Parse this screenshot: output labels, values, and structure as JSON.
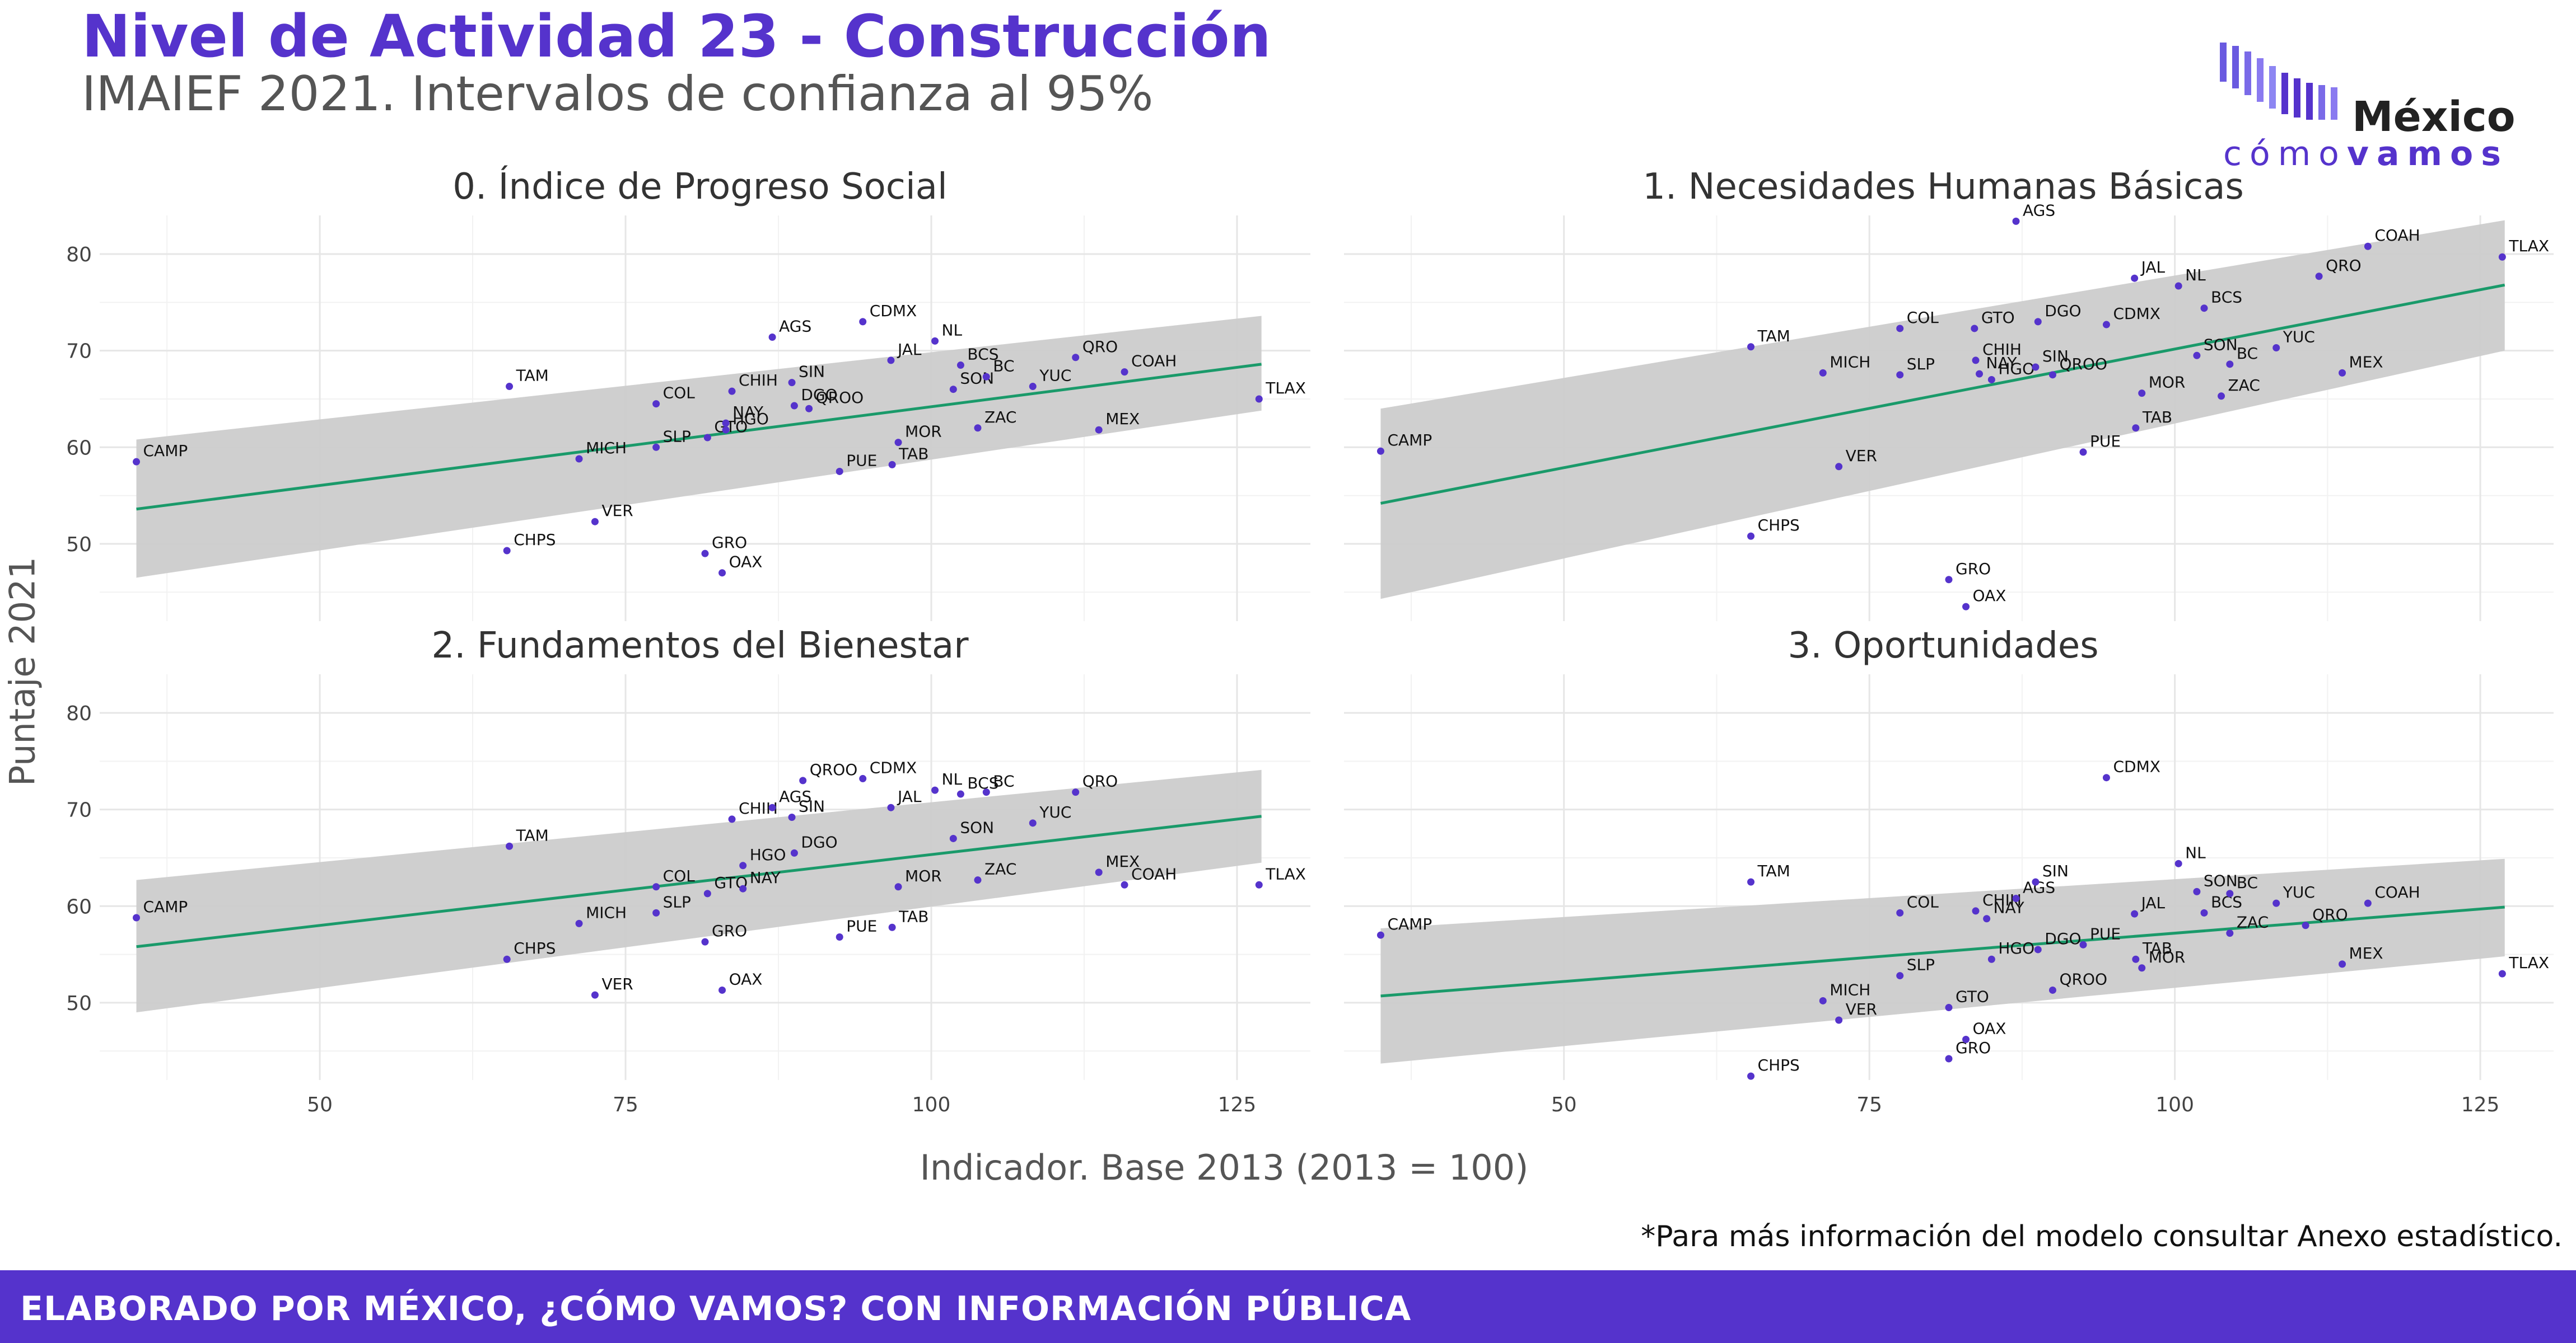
{
  "header": {
    "title": "Nivel de Actividad 23 - Construcción",
    "subtitle": "IMAIEF 2021. Intervalos de confianza al 95%"
  },
  "logo": {
    "word1": "México",
    "word2a": "cómo",
    "word2b": "vamos",
    "bars_icon": "bars-icon"
  },
  "axes": {
    "ylabel": "Puntaje 2021",
    "xlabel": "Indicador. Base 2013 (2013 = 100)"
  },
  "footnote": "*Para más información del modelo consultar Anexo estadístico.",
  "footer": "ELABORADO POR MÉXICO, ¿CÓMO VAMOS? CON INFORMACIÓN PÚBLICA",
  "colors": {
    "accent": "#5533cc",
    "point": "#5533cc",
    "line": "#1a9a6a",
    "band": "#cccccc"
  },
  "chart_data": [
    {
      "type": "scatter",
      "title": "0. Índice de Progreso Social",
      "xlim": [
        32,
        131
      ],
      "ylim": [
        42,
        84
      ],
      "xticks": [
        50,
        75,
        100,
        125
      ],
      "yticks": [
        50,
        60,
        70,
        80
      ],
      "fit": {
        "x": [
          35,
          127
        ],
        "y": [
          53.6,
          68.6
        ],
        "lower": [
          46.5,
          63.8
        ],
        "upper": [
          60.8,
          73.6
        ]
      },
      "points": [
        {
          "label": "CAMP",
          "x": 35,
          "y": 58.5
        },
        {
          "label": "TAM",
          "x": 65.5,
          "y": 66.3
        },
        {
          "label": "CHPS",
          "x": 65.3,
          "y": 49.3
        },
        {
          "label": "VER",
          "x": 72.5,
          "y": 52.3
        },
        {
          "label": "MICH",
          "x": 71.2,
          "y": 58.8
        },
        {
          "label": "SLP",
          "x": 77.5,
          "y": 60
        },
        {
          "label": "COL",
          "x": 77.5,
          "y": 64.5
        },
        {
          "label": "GTO",
          "x": 81.7,
          "y": 61
        },
        {
          "label": "GRO",
          "x": 81.5,
          "y": 49
        },
        {
          "label": "OAX",
          "x": 82.9,
          "y": 47
        },
        {
          "label": "CHIH",
          "x": 83.7,
          "y": 65.8
        },
        {
          "label": "NAY",
          "x": 83.2,
          "y": 62.5
        },
        {
          "label": "HGO",
          "x": 83.2,
          "y": 61.8
        },
        {
          "label": "DGO",
          "x": 88.8,
          "y": 64.3
        },
        {
          "label": "SIN",
          "x": 88.6,
          "y": 66.7
        },
        {
          "label": "AGS",
          "x": 87,
          "y": 71.4
        },
        {
          "label": "QROO",
          "x": 90,
          "y": 64
        },
        {
          "label": "CDMX",
          "x": 94.4,
          "y": 73
        },
        {
          "label": "PUE",
          "x": 92.5,
          "y": 57.5
        },
        {
          "label": "TAB",
          "x": 96.8,
          "y": 58.2
        },
        {
          "label": "JAL",
          "x": 96.7,
          "y": 69
        },
        {
          "label": "MOR",
          "x": 97.3,
          "y": 60.5
        },
        {
          "label": "NL",
          "x": 100.3,
          "y": 71
        },
        {
          "label": "BCS",
          "x": 102.4,
          "y": 68.5
        },
        {
          "label": "SON",
          "x": 101.8,
          "y": 66
        },
        {
          "label": "ZAC",
          "x": 103.8,
          "y": 62
        },
        {
          "label": "BC",
          "x": 104.5,
          "y": 67.3
        },
        {
          "label": "YUC",
          "x": 108.3,
          "y": 66.3
        },
        {
          "label": "QRO",
          "x": 111.8,
          "y": 69.3
        },
        {
          "label": "MEX",
          "x": 113.7,
          "y": 61.8
        },
        {
          "label": "COAH",
          "x": 115.8,
          "y": 67.8
        },
        {
          "label": "TLAX",
          "x": 126.8,
          "y": 65
        }
      ]
    },
    {
      "type": "scatter",
      "title": "1. Necesidades Humanas Básicas",
      "xlim": [
        32,
        131
      ],
      "ylim": [
        42,
        84
      ],
      "xticks": [
        50,
        75,
        100,
        125
      ],
      "yticks": [
        50,
        60,
        70,
        80
      ],
      "fit": {
        "x": [
          35,
          127
        ],
        "y": [
          54.2,
          76.8
        ],
        "lower": [
          44.3,
          70
        ],
        "upper": [
          64,
          83.5
        ]
      },
      "points": [
        {
          "label": "CAMP",
          "x": 35,
          "y": 59.6
        },
        {
          "label": "TAM",
          "x": 65.3,
          "y": 70.4
        },
        {
          "label": "CHPS",
          "x": 65.3,
          "y": 50.8
        },
        {
          "label": "VER",
          "x": 72.5,
          "y": 58
        },
        {
          "label": "MICH",
          "x": 71.2,
          "y": 67.7
        },
        {
          "label": "SLP",
          "x": 77.5,
          "y": 67.5
        },
        {
          "label": "COL",
          "x": 77.5,
          "y": 72.3
        },
        {
          "label": "CHIH",
          "x": 83.7,
          "y": 69
        },
        {
          "label": "GTO",
          "x": 83.6,
          "y": 72.3
        },
        {
          "label": "NAY",
          "x": 84,
          "y": 67.6
        },
        {
          "label": "HGO",
          "x": 85,
          "y": 67
        },
        {
          "label": "GRO",
          "x": 81.5,
          "y": 46.3
        },
        {
          "label": "OAX",
          "x": 82.9,
          "y": 43.5
        },
        {
          "label": "AGS",
          "x": 87,
          "y": 83.4
        },
        {
          "label": "DGO",
          "x": 88.8,
          "y": 73
        },
        {
          "label": "SIN",
          "x": 88.6,
          "y": 68.3
        },
        {
          "label": "QROO",
          "x": 90,
          "y": 67.5
        },
        {
          "label": "CDMX",
          "x": 94.4,
          "y": 72.7
        },
        {
          "label": "PUE",
          "x": 92.5,
          "y": 59.5
        },
        {
          "label": "JAL",
          "x": 96.7,
          "y": 77.5
        },
        {
          "label": "NL",
          "x": 100.3,
          "y": 76.7
        },
        {
          "label": "TAB",
          "x": 96.8,
          "y": 62
        },
        {
          "label": "MOR",
          "x": 97.3,
          "y": 65.6
        },
        {
          "label": "BCS",
          "x": 102.4,
          "y": 74.4
        },
        {
          "label": "SON",
          "x": 101.8,
          "y": 69.5
        },
        {
          "label": "ZAC",
          "x": 103.8,
          "y": 65.3
        },
        {
          "label": "BC",
          "x": 104.5,
          "y": 68.6
        },
        {
          "label": "YUC",
          "x": 108.3,
          "y": 70.3
        },
        {
          "label": "QRO",
          "x": 111.8,
          "y": 77.7
        },
        {
          "label": "COAH",
          "x": 115.8,
          "y": 80.8
        },
        {
          "label": "MEX",
          "x": 113.7,
          "y": 67.7
        },
        {
          "label": "TLAX",
          "x": 126.8,
          "y": 79.7
        }
      ]
    },
    {
      "type": "scatter",
      "title": "2. Fundamentos del Bienestar",
      "xlim": [
        32,
        131
      ],
      "ylim": [
        42,
        84
      ],
      "xticks": [
        50,
        75,
        100,
        125
      ],
      "yticks": [
        50,
        60,
        70,
        80
      ],
      "fit": {
        "x": [
          35,
          127
        ],
        "y": [
          55.8,
          69.3
        ],
        "lower": [
          49,
          64.5
        ],
        "upper": [
          62.7,
          74.1
        ]
      },
      "points": [
        {
          "label": "CAMP",
          "x": 35,
          "y": 58.8
        },
        {
          "label": "TAM",
          "x": 65.5,
          "y": 66.2
        },
        {
          "label": "CHPS",
          "x": 65.3,
          "y": 54.5
        },
        {
          "label": "VER",
          "x": 72.5,
          "y": 50.8
        },
        {
          "label": "MICH",
          "x": 71.2,
          "y": 58.2
        },
        {
          "label": "SLP",
          "x": 77.5,
          "y": 59.3
        },
        {
          "label": "COL",
          "x": 77.5,
          "y": 62
        },
        {
          "label": "GTO",
          "x": 81.7,
          "y": 61.3
        },
        {
          "label": "GRO",
          "x": 81.5,
          "y": 56.3
        },
        {
          "label": "OAX",
          "x": 82.9,
          "y": 51.3
        },
        {
          "label": "CHIH",
          "x": 83.7,
          "y": 69
        },
        {
          "label": "HGO",
          "x": 84.6,
          "y": 64.2
        },
        {
          "label": "NAY",
          "x": 84.6,
          "y": 61.8
        },
        {
          "label": "AGS",
          "x": 87,
          "y": 70.2
        },
        {
          "label": "SIN",
          "x": 88.6,
          "y": 69.2
        },
        {
          "label": "DGO",
          "x": 88.8,
          "y": 65.5
        },
        {
          "label": "QROO",
          "x": 89.5,
          "y": 73
        },
        {
          "label": "CDMX",
          "x": 94.4,
          "y": 73.2
        },
        {
          "label": "PUE",
          "x": 92.5,
          "y": 56.8
        },
        {
          "label": "JAL",
          "x": 96.7,
          "y": 70.2
        },
        {
          "label": "TAB",
          "x": 96.8,
          "y": 57.8
        },
        {
          "label": "MOR",
          "x": 97.3,
          "y": 62
        },
        {
          "label": "NL",
          "x": 100.3,
          "y": 72
        },
        {
          "label": "BCS",
          "x": 102.4,
          "y": 71.6
        },
        {
          "label": "SON",
          "x": 101.8,
          "y": 67
        },
        {
          "label": "ZAC",
          "x": 103.8,
          "y": 62.7
        },
        {
          "label": "BC",
          "x": 104.5,
          "y": 71.8
        },
        {
          "label": "YUC",
          "x": 108.3,
          "y": 68.6
        },
        {
          "label": "QRO",
          "x": 111.8,
          "y": 71.8
        },
        {
          "label": "MEX",
          "x": 113.7,
          "y": 63.5
        },
        {
          "label": "COAH",
          "x": 115.8,
          "y": 62.2
        },
        {
          "label": "TLAX",
          "x": 126.8,
          "y": 62.2
        }
      ]
    },
    {
      "type": "scatter",
      "title": "3. Oportunidades",
      "xlim": [
        32,
        131
      ],
      "ylim": [
        42,
        84
      ],
      "xticks": [
        50,
        75,
        100,
        125
      ],
      "yticks": [
        50,
        60,
        70,
        80
      ],
      "fit": {
        "x": [
          35,
          127
        ],
        "y": [
          50.7,
          59.9
        ],
        "lower": [
          43.7,
          54.8
        ],
        "upper": [
          57.7,
          64.9
        ]
      },
      "points": [
        {
          "label": "CAMP",
          "x": 35,
          "y": 57
        },
        {
          "label": "TAM",
          "x": 65.3,
          "y": 62.5
        },
        {
          "label": "CHPS",
          "x": 65.3,
          "y": 42.4
        },
        {
          "label": "MICH",
          "x": 71.2,
          "y": 50.2
        },
        {
          "label": "VER",
          "x": 72.5,
          "y": 48.2
        },
        {
          "label": "SLP",
          "x": 77.5,
          "y": 52.8
        },
        {
          "label": "COL",
          "x": 77.5,
          "y": 59.3
        },
        {
          "label": "GTO",
          "x": 81.5,
          "y": 49.5
        },
        {
          "label": "GRO",
          "x": 81.5,
          "y": 44.2
        },
        {
          "label": "OAX",
          "x": 82.9,
          "y": 46.2
        },
        {
          "label": "CHIH",
          "x": 83.7,
          "y": 59.5
        },
        {
          "label": "HGO",
          "x": 85,
          "y": 54.5
        },
        {
          "label": "NAY",
          "x": 84.6,
          "y": 58.7
        },
        {
          "label": "AGS",
          "x": 87,
          "y": 60.8
        },
        {
          "label": "SIN",
          "x": 88.6,
          "y": 62.5
        },
        {
          "label": "DGO",
          "x": 88.8,
          "y": 55.5
        },
        {
          "label": "QROO",
          "x": 90,
          "y": 51.3
        },
        {
          "label": "CDMX",
          "x": 94.4,
          "y": 73.3
        },
        {
          "label": "PUE",
          "x": 92.5,
          "y": 56
        },
        {
          "label": "JAL",
          "x": 96.7,
          "y": 59.2
        },
        {
          "label": "TAB",
          "x": 96.8,
          "y": 54.5
        },
        {
          "label": "MOR",
          "x": 97.3,
          "y": 53.6
        },
        {
          "label": "NL",
          "x": 100.3,
          "y": 64.4
        },
        {
          "label": "SON",
          "x": 101.8,
          "y": 61.5
        },
        {
          "label": "BCS",
          "x": 102.4,
          "y": 59.3
        },
        {
          "label": "BC",
          "x": 104.5,
          "y": 61.3
        },
        {
          "label": "ZAC",
          "x": 104.5,
          "y": 57.2
        },
        {
          "label": "YUC",
          "x": 108.3,
          "y": 60.3
        },
        {
          "label": "QRO",
          "x": 110.7,
          "y": 58
        },
        {
          "label": "MEX",
          "x": 113.7,
          "y": 54
        },
        {
          "label": "COAH",
          "x": 115.8,
          "y": 60.3
        },
        {
          "label": "TLAX",
          "x": 126.8,
          "y": 53
        }
      ]
    }
  ]
}
